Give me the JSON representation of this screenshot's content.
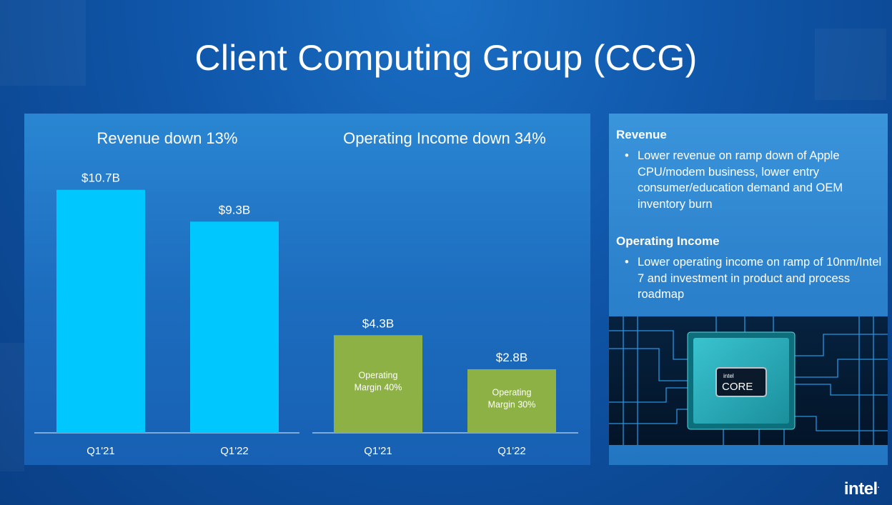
{
  "title": "Client Computing Group (CCG)",
  "chart_data": [
    {
      "type": "bar",
      "title": "Revenue down 13%",
      "categories": [
        "Q1'21",
        "Q1'22"
      ],
      "values": [
        10.7,
        9.3
      ],
      "value_labels": [
        "$10.7B",
        "$9.3B"
      ],
      "unit": "$B",
      "color": "#00c7fd",
      "bar_labels": [
        "",
        ""
      ]
    },
    {
      "type": "bar",
      "title": "Operating Income down 34%",
      "categories": [
        "Q1'21",
        "Q1'22"
      ],
      "values": [
        4.3,
        2.8
      ],
      "value_labels": [
        "$4.3B",
        "$2.8B"
      ],
      "unit": "$B",
      "color": "#8db145",
      "bar_labels": [
        [
          "Operating",
          "Margin 40%"
        ],
        [
          "Operating",
          "Margin 30%"
        ]
      ]
    }
  ],
  "sidebar": {
    "revenue_heading": "Revenue",
    "revenue_text": "Lower revenue on ramp down of Apple CPU/modem business, lower entry consumer/education demand and OEM inventory burn",
    "opinc_heading": "Operating Income",
    "opinc_text": "Lower operating income on ramp of 10nm/Intel 7 and investment in product and process roadmap",
    "chip_brand": "intel",
    "chip_label": "CORE"
  },
  "logo": {
    "text": "intel",
    "dot": "."
  }
}
